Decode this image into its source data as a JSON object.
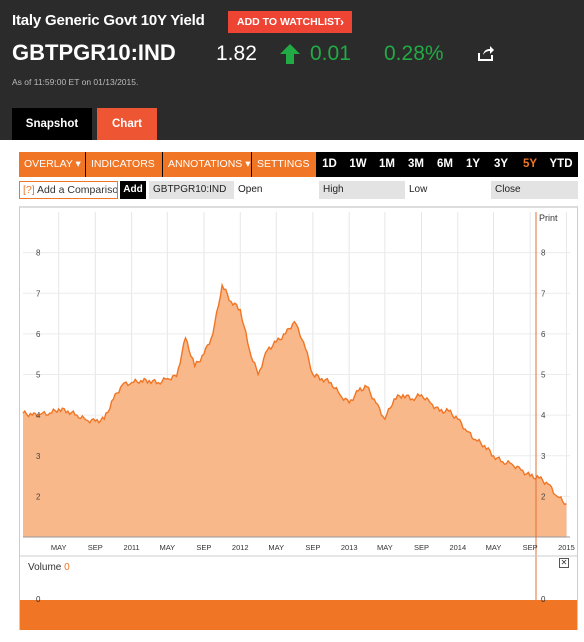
{
  "header": {
    "title": "Italy Generic Govt 10Y Yield",
    "watchlist_label": "ADD TO WATCHLIST",
    "ticker": "GBTPGR10:IND",
    "price": "1.82",
    "change": "0.01",
    "change_pct": "0.28%",
    "as_of": "As of 11:59:00 ET on 01/13/2015.",
    "tabs": [
      {
        "label": "Snapshot"
      },
      {
        "label": "Chart"
      }
    ]
  },
  "toolbar": {
    "menus": [
      {
        "label": "OVERLAY ▾"
      },
      {
        "label": "INDICATORS ▾"
      },
      {
        "label": "ANNOTATIONS ▾"
      },
      {
        "label": "SETTINGS ▾"
      }
    ],
    "ranges": [
      {
        "label": "1D"
      },
      {
        "label": "1W"
      },
      {
        "label": "1M"
      },
      {
        "label": "3M"
      },
      {
        "label": "6M"
      },
      {
        "label": "1Y"
      },
      {
        "label": "3Y"
      },
      {
        "label": "5Y",
        "active": true
      },
      {
        "label": "YTD"
      }
    ]
  },
  "compare": {
    "prefix": "[?]",
    "value": "Add a Compariso",
    "add_label": "Add",
    "symbol": "GBTPGR10:IND",
    "open_label": "Open",
    "high_label": "High",
    "low_label": "Low",
    "close_label": "Close"
  },
  "chart": {
    "print_label": "Print",
    "volume_label": "Volume",
    "volume_value": "0",
    "close_icon": "close-icon",
    "accent_color": "#f07525",
    "fill_color": "#f9b88a"
  },
  "chart_data": {
    "type": "area",
    "x": [
      "2010-01",
      "2010-02",
      "2010-03",
      "2010-04",
      "2010-05",
      "2010-06",
      "2010-07",
      "2010-08",
      "2010-09",
      "2010-10",
      "2010-11",
      "2010-12",
      "2011-01",
      "2011-02",
      "2011-03",
      "2011-04",
      "2011-05",
      "2011-06",
      "2011-07",
      "2011-08",
      "2011-09",
      "2011-10",
      "2011-11",
      "2011-12",
      "2012-01",
      "2012-02",
      "2012-03",
      "2012-04",
      "2012-05",
      "2012-06",
      "2012-07",
      "2012-08",
      "2012-09",
      "2012-10",
      "2012-11",
      "2012-12",
      "2013-01",
      "2013-02",
      "2013-03",
      "2013-04",
      "2013-05",
      "2013-06",
      "2013-07",
      "2013-08",
      "2013-09",
      "2013-10",
      "2013-11",
      "2013-12",
      "2014-01",
      "2014-02",
      "2014-03",
      "2014-04",
      "2014-05",
      "2014-06",
      "2014-07",
      "2014-08",
      "2014-09",
      "2014-10",
      "2014-11",
      "2014-12",
      "2015-01"
    ],
    "values": [
      4.05,
      4.0,
      4.02,
      4.05,
      4.15,
      4.1,
      4.0,
      3.88,
      3.85,
      3.9,
      4.4,
      4.75,
      4.8,
      4.85,
      4.85,
      4.8,
      4.9,
      4.95,
      5.9,
      5.2,
      5.5,
      6.0,
      7.2,
      6.8,
      6.6,
      5.6,
      5.0,
      5.6,
      5.8,
      6.0,
      6.3,
      5.8,
      5.0,
      4.9,
      4.8,
      4.5,
      4.3,
      4.6,
      4.7,
      4.3,
      3.9,
      4.4,
      4.5,
      4.4,
      4.5,
      4.3,
      4.1,
      4.1,
      3.9,
      3.6,
      3.4,
      3.25,
      3.0,
      2.85,
      2.8,
      2.65,
      2.5,
      2.45,
      2.3,
      2.0,
      1.82
    ],
    "ylim": [
      1,
      9
    ],
    "yticks": [
      "2",
      "3",
      "4",
      "5",
      "6",
      "7",
      "8"
    ],
    "xtick_labels": [
      "MAY",
      "SEP",
      "2011",
      "MAY",
      "SEP",
      "2012",
      "MAY",
      "SEP",
      "2013",
      "MAY",
      "SEP",
      "2014",
      "MAY",
      "SEP",
      "2015"
    ],
    "xtick_dates": [
      "2010-05",
      "2010-09",
      "2011-01",
      "2011-05",
      "2011-09",
      "2012-01",
      "2012-05",
      "2012-09",
      "2013-01",
      "2013-05",
      "2013-09",
      "2014-01",
      "2014-05",
      "2014-09",
      "2015-01"
    ],
    "volume": 0,
    "grid": true
  }
}
